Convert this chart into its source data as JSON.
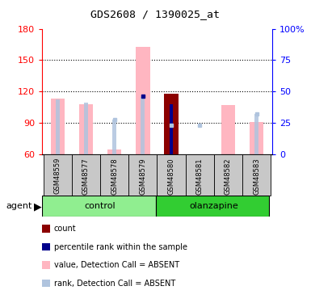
{
  "title": "GDS2608 / 1390025_at",
  "samples": [
    "GSM48559",
    "GSM48577",
    "GSM48578",
    "GSM48579",
    "GSM48580",
    "GSM48581",
    "GSM48582",
    "GSM48583"
  ],
  "groups": [
    "control",
    "control",
    "control",
    "control",
    "olanzapine",
    "olanzapine",
    "olanzapine",
    "olanzapine"
  ],
  "value_absent": [
    113.0,
    108.0,
    65.0,
    163.0,
    null,
    null,
    107.0,
    91.0
  ],
  "rank_absent_pct": [
    44.0,
    41.0,
    28.0,
    46.0,
    null,
    null,
    null,
    32.0
  ],
  "rank_absent_dot_pct": [
    null,
    null,
    28.0,
    null,
    23.0,
    23.0,
    null,
    32.0
  ],
  "count_bar": [
    null,
    null,
    null,
    null,
    118.0,
    null,
    null,
    null
  ],
  "pct_rank_pct": [
    null,
    null,
    null,
    null,
    40.0,
    null,
    null,
    null
  ],
  "pct_rank_dot_left": [
    null,
    null,
    null,
    116.0,
    null,
    null,
    null,
    null
  ],
  "ylim_left": [
    60,
    180
  ],
  "ylim_right": [
    0,
    100
  ],
  "yticks_left": [
    60,
    90,
    120,
    150,
    180
  ],
  "yticks_right": [
    0,
    25,
    50,
    75,
    100
  ],
  "color_count": "#8b0000",
  "color_pct_rank": "#00008b",
  "color_value_absent": "#ffb6c1",
  "color_rank_absent": "#b0c4de",
  "color_label_bg": "#c8c8c8",
  "color_ctrl_bg": "#90ee90",
  "color_olz_bg": "#32cd32",
  "bg_color": "#ffffff"
}
